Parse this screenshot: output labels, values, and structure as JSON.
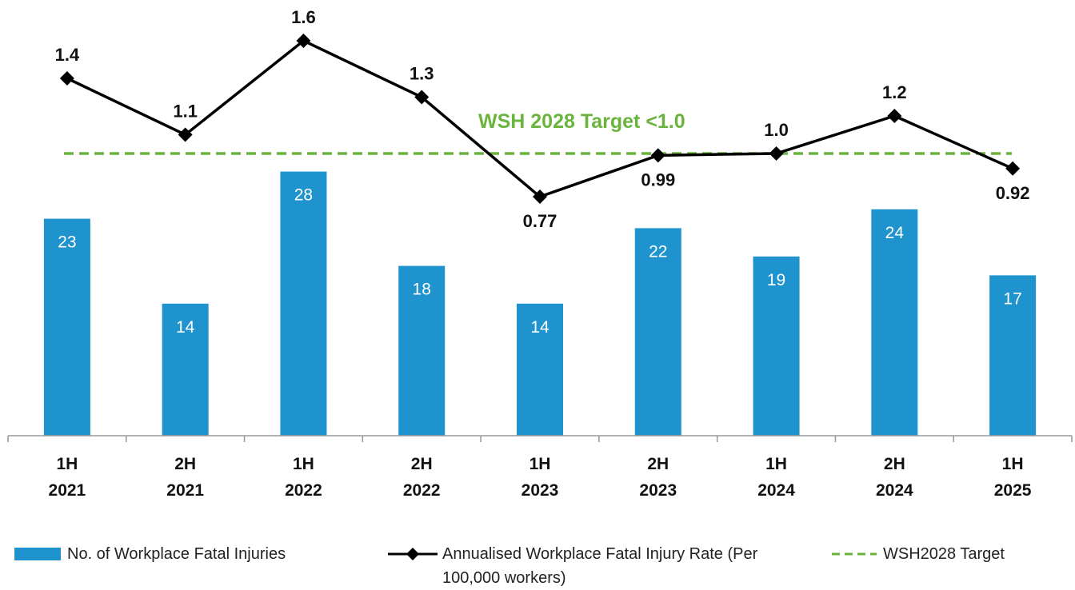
{
  "chart_data": {
    "type": "bar_line",
    "categories": [
      "1H 2021",
      "2H 2021",
      "1H 2022",
      "2H 2022",
      "1H 2023",
      "2H 2023",
      "1H 2024",
      "2H 2024",
      "1H 2025"
    ],
    "ylim": [
      0,
      30
    ],
    "y2lim": [
      0.6,
      1.8
    ],
    "series": [
      {
        "name": "No. of Workplace Fatal Injuries",
        "color": "#1f93cd",
        "type": "bar",
        "values": [
          23,
          14,
          28,
          18,
          14,
          22,
          19,
          24,
          17
        ]
      },
      {
        "name": "Annualised Workplace Fatal Injury Rate (Per 100,000 workers)",
        "color": "#000000",
        "type": "line",
        "axis": "y2",
        "values": [
          1.4,
          1.1,
          1.6,
          1.3,
          0.77,
          0.99,
          1.0,
          1.2,
          0.92
        ],
        "value_labels": [
          "1.4",
          "1.1",
          "1.6",
          "1.3",
          "0.77",
          "0.99",
          "1.0",
          "1.2",
          "0.92"
        ]
      },
      {
        "name": "WSH2028 Target",
        "color": "#6ab43e",
        "type": "target",
        "axis": "y2",
        "value": 1.0
      }
    ],
    "annotation": "WSH 2028 Target <1.0"
  }
}
